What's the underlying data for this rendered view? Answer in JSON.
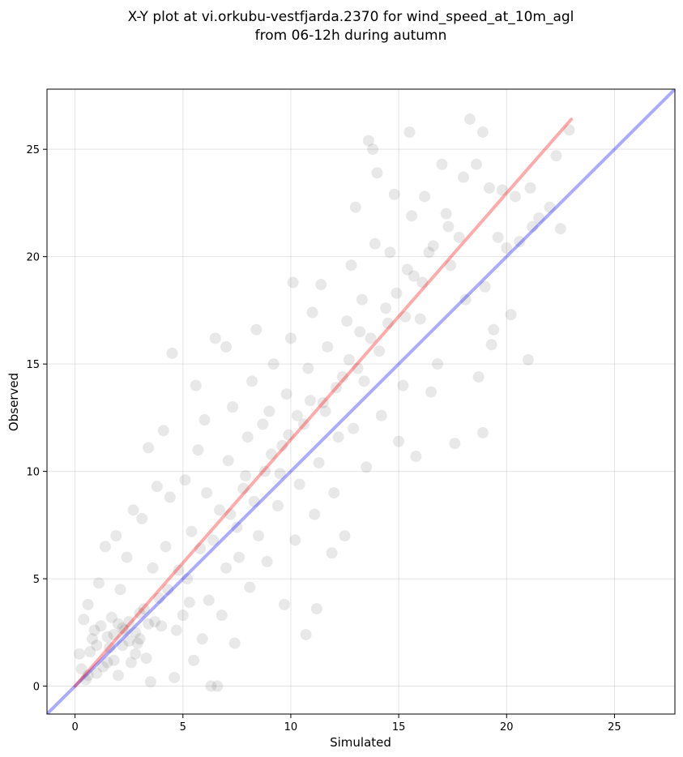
{
  "chart_data": {
    "type": "scatter",
    "title_line1": "X-Y plot at vi.orkubu-vestfjarda.2370 for wind_speed_at_10m_agl",
    "title_line2": "from 06-12h during autumn",
    "xlabel": "Simulated",
    "ylabel": "Observed",
    "xlim": [
      -1.3,
      27.8
    ],
    "ylim": [
      -1.3,
      27.8
    ],
    "xticks": [
      0,
      5,
      10,
      15,
      20,
      25
    ],
    "yticks": [
      0,
      5,
      10,
      15,
      20,
      25
    ],
    "grid": true,
    "point_color": "#000000",
    "point_alpha": 0.09,
    "regression_line": {
      "color": "#ff0000",
      "x": [
        0,
        23.0
      ],
      "y": [
        0,
        26.4
      ]
    },
    "identity_line": {
      "color": "#0000ff",
      "x": [
        -1.3,
        27.8
      ],
      "y": [
        -1.3,
        27.8
      ]
    },
    "points": [
      [
        0.5,
        0.3
      ],
      [
        0.2,
        1.5
      ],
      [
        0.8,
        2.2
      ],
      [
        0.4,
        3.1
      ],
      [
        1.0,
        0.6
      ],
      [
        1.2,
        2.8
      ],
      [
        0.6,
        3.8
      ],
      [
        1.5,
        1.1
      ],
      [
        1.8,
        2.4
      ],
      [
        1.1,
        4.8
      ],
      [
        1.4,
        6.5
      ],
      [
        2.0,
        0.5
      ],
      [
        2.2,
        1.9
      ],
      [
        2.5,
        3.0
      ],
      [
        2.8,
        1.5
      ],
      [
        2.1,
        4.5
      ],
      [
        2.4,
        6.0
      ],
      [
        3.0,
        2.2
      ],
      [
        3.2,
        3.6
      ],
      [
        3.5,
        0.2
      ],
      [
        3.1,
        7.8
      ],
      [
        3.4,
        11.1
      ],
      [
        2.7,
        8.2
      ],
      [
        1.9,
        7.0
      ],
      [
        4.0,
        2.8
      ],
      [
        4.3,
        4.5
      ],
      [
        4.6,
        0.4
      ],
      [
        4.2,
        6.5
      ],
      [
        4.4,
        8.8
      ],
      [
        4.1,
        11.9
      ],
      [
        4.5,
        15.5
      ],
      [
        3.8,
        9.3
      ],
      [
        3.6,
        5.5
      ],
      [
        5.0,
        3.3
      ],
      [
        5.2,
        5.0
      ],
      [
        5.5,
        1.2
      ],
      [
        5.4,
        7.2
      ],
      [
        5.1,
        9.6
      ],
      [
        5.7,
        11.0
      ],
      [
        5.6,
        14.0
      ],
      [
        5.9,
        2.2
      ],
      [
        6.2,
        4.0
      ],
      [
        6.4,
        6.8
      ],
      [
        6.1,
        9.0
      ],
      [
        6.0,
        12.4
      ],
      [
        6.5,
        16.2
      ],
      [
        6.6,
        0.0
      ],
      [
        6.3,
        0.0
      ],
      [
        6.8,
        3.3
      ],
      [
        7.0,
        5.5
      ],
      [
        7.2,
        8.0
      ],
      [
        7.1,
        10.5
      ],
      [
        7.3,
        13.0
      ],
      [
        7.0,
        15.8
      ],
      [
        7.4,
        2.0
      ],
      [
        7.6,
        6.0
      ],
      [
        7.8,
        9.2
      ],
      [
        8.0,
        11.6
      ],
      [
        8.2,
        14.2
      ],
      [
        8.4,
        16.6
      ],
      [
        8.1,
        4.6
      ],
      [
        8.5,
        7.0
      ],
      [
        8.8,
        10.0
      ],
      [
        9.0,
        12.8
      ],
      [
        9.2,
        15.0
      ],
      [
        8.9,
        5.8
      ],
      [
        9.4,
        8.4
      ],
      [
        9.6,
        11.2
      ],
      [
        9.8,
        13.6
      ],
      [
        10.0,
        16.2
      ],
      [
        9.7,
        3.8
      ],
      [
        10.1,
        18.8
      ],
      [
        10.2,
        6.8
      ],
      [
        10.4,
        9.4
      ],
      [
        10.6,
        12.2
      ],
      [
        10.8,
        14.8
      ],
      [
        11.0,
        17.4
      ],
      [
        10.7,
        2.4
      ],
      [
        11.2,
        3.6
      ],
      [
        11.1,
        8.0
      ],
      [
        11.3,
        10.4
      ],
      [
        11.5,
        13.2
      ],
      [
        11.7,
        15.8
      ],
      [
        11.4,
        18.7
      ],
      [
        11.9,
        6.2
      ],
      [
        12.0,
        9.0
      ],
      [
        12.2,
        11.6
      ],
      [
        12.4,
        14.4
      ],
      [
        12.6,
        17.0
      ],
      [
        12.8,
        19.6
      ],
      [
        12.5,
        7.0
      ],
      [
        12.9,
        12.0
      ],
      [
        13.1,
        14.8
      ],
      [
        13.3,
        18.0
      ],
      [
        13.0,
        22.3
      ],
      [
        13.5,
        10.2
      ],
      [
        13.7,
        16.2
      ],
      [
        13.9,
        20.6
      ],
      [
        13.6,
        25.4
      ],
      [
        13.8,
        25.0
      ],
      [
        14.0,
        23.9
      ],
      [
        14.2,
        12.6
      ],
      [
        14.4,
        17.6
      ],
      [
        14.6,
        20.2
      ],
      [
        14.8,
        22.9
      ],
      [
        15.0,
        11.4
      ],
      [
        15.2,
        14.0
      ],
      [
        15.4,
        19.4
      ],
      [
        15.6,
        21.9
      ],
      [
        15.5,
        25.8
      ],
      [
        15.8,
        10.7
      ],
      [
        16.0,
        17.1
      ],
      [
        16.2,
        22.8
      ],
      [
        16.5,
        13.7
      ],
      [
        16.4,
        20.2
      ],
      [
        16.8,
        15.0
      ],
      [
        17.0,
        24.3
      ],
      [
        17.4,
        19.6
      ],
      [
        17.2,
        22.0
      ],
      [
        17.6,
        11.3
      ],
      [
        17.8,
        20.9
      ],
      [
        18.0,
        23.7
      ],
      [
        18.3,
        26.4
      ],
      [
        18.1,
        18.0
      ],
      [
        18.6,
        24.3
      ],
      [
        18.7,
        14.4
      ],
      [
        18.9,
        25.8
      ],
      [
        19.0,
        18.6
      ],
      [
        19.2,
        23.2
      ],
      [
        19.4,
        16.6
      ],
      [
        19.6,
        20.9
      ],
      [
        19.8,
        23.1
      ],
      [
        20.2,
        17.3
      ],
      [
        20.4,
        22.8
      ],
      [
        20.6,
        20.7
      ],
      [
        21.0,
        15.2
      ],
      [
        21.2,
        21.4
      ],
      [
        21.5,
        21.8
      ],
      [
        22.0,
        22.3
      ],
      [
        22.3,
        24.7
      ],
      [
        22.5,
        21.3
      ],
      [
        22.9,
        25.9
      ],
      [
        18.9,
        11.8
      ],
      [
        19.3,
        15.9
      ],
      [
        20.0,
        20.4
      ],
      [
        21.1,
        23.2
      ],
      [
        0.3,
        0.8
      ],
      [
        0.7,
        1.6
      ],
      [
        0.9,
        2.6
      ],
      [
        1.3,
        0.9
      ],
      [
        1.6,
        1.8
      ],
      [
        1.7,
        3.2
      ],
      [
        2.3,
        2.6
      ],
      [
        2.6,
        1.1
      ],
      [
        2.9,
        2.0
      ],
      [
        3.3,
        1.3
      ],
      [
        3.7,
        3.0
      ],
      [
        3.9,
        4.1
      ],
      [
        4.7,
        2.6
      ],
      [
        4.8,
        5.4
      ],
      [
        5.3,
        3.9
      ],
      [
        5.8,
        6.4
      ],
      [
        6.7,
        8.2
      ],
      [
        7.5,
        7.4
      ],
      [
        7.9,
        9.8
      ],
      [
        8.3,
        8.6
      ],
      [
        8.7,
        12.2
      ],
      [
        9.1,
        10.8
      ],
      [
        9.5,
        9.9
      ],
      [
        9.9,
        11.7
      ],
      [
        10.3,
        12.6
      ],
      [
        10.9,
        13.3
      ],
      [
        11.6,
        12.8
      ],
      [
        12.1,
        13.9
      ],
      [
        12.7,
        15.2
      ],
      [
        13.2,
        16.5
      ],
      [
        13.4,
        14.2
      ],
      [
        14.1,
        15.6
      ],
      [
        14.5,
        16.9
      ],
      [
        14.9,
        18.3
      ],
      [
        15.3,
        17.2
      ],
      [
        15.7,
        19.1
      ],
      [
        16.1,
        18.8
      ],
      [
        16.6,
        20.5
      ],
      [
        17.3,
        21.4
      ],
      [
        1.0,
        1.9
      ],
      [
        1.5,
        2.3
      ],
      [
        2.0,
        2.9
      ],
      [
        2.5,
        2.1
      ],
      [
        3.0,
        3.4
      ],
      [
        1.8,
        1.2
      ],
      [
        2.2,
        2.7
      ],
      [
        2.8,
        2.5
      ],
      [
        3.4,
        2.9
      ],
      [
        0.6,
        0.5
      ]
    ]
  }
}
